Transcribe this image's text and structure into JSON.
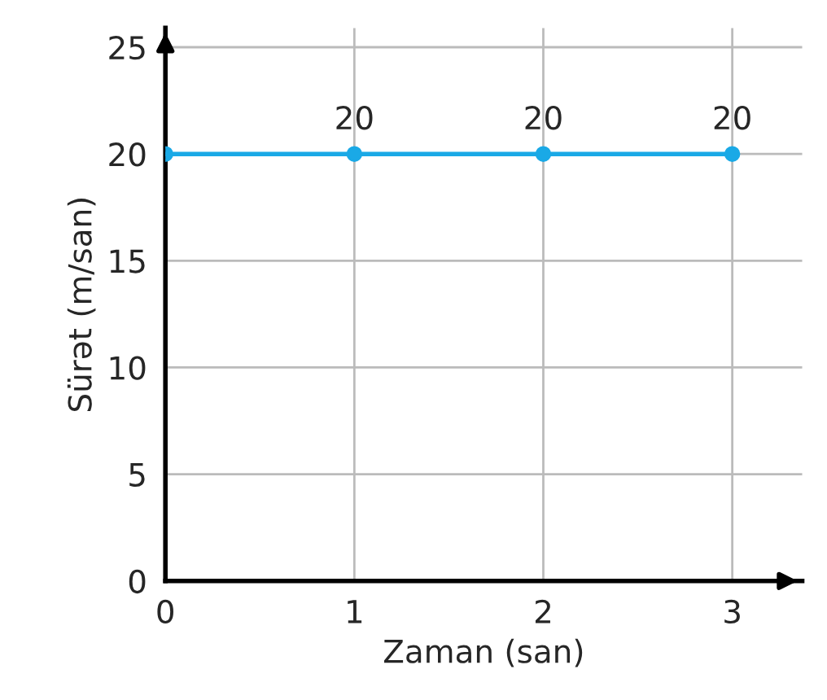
{
  "chart_data": {
    "type": "line",
    "xlabel": "Zaman (san)",
    "ylabel": "Sürət (m/san)",
    "x": [
      0,
      1,
      2,
      3
    ],
    "series": [
      {
        "color": "#1aa9e6",
        "values": [
          20,
          20,
          20,
          20
        ],
        "value_labels": [
          null,
          "20",
          "20",
          "20"
        ]
      }
    ],
    "xlim": [
      0,
      3.37
    ],
    "ylim": [
      0,
      25.9
    ],
    "xticks": [
      0,
      1,
      2,
      3
    ],
    "yticks": [
      0,
      5,
      10,
      15,
      20,
      25
    ],
    "grid": true,
    "marker": "circle",
    "line_style": "solid"
  }
}
